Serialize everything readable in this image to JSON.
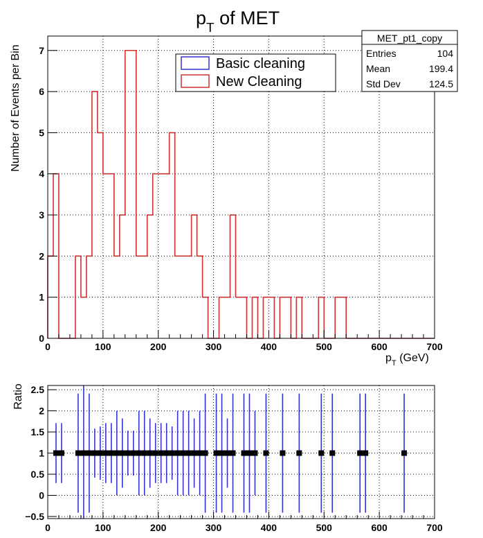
{
  "chart_data": [
    {
      "type": "line",
      "title": "p_T of MET",
      "xlabel": "p_T (GeV)",
      "ylabel": "Number of Events per Bin",
      "xlim": [
        0,
        700
      ],
      "ylim": [
        0,
        7.35
      ],
      "x_ticks": [
        0,
        100,
        200,
        300,
        400,
        500,
        600,
        700
      ],
      "y_ticks": [
        0,
        1,
        2,
        3,
        4,
        5,
        6,
        7
      ],
      "grid": true,
      "legend_position": "top-center",
      "bin_width": 10,
      "series": [
        {
          "name": "Basic cleaning",
          "color": "#3333cc",
          "values": []
        },
        {
          "name": "New Cleaning",
          "color": "#cc3333",
          "values": [
            2,
            4,
            0,
            0,
            0,
            2,
            1,
            2,
            6,
            5,
            4,
            4,
            2,
            3,
            7,
            7,
            2,
            2,
            3,
            4,
            4,
            4,
            5,
            2,
            2,
            2,
            3,
            2,
            1,
            0,
            0,
            1,
            1,
            3,
            1,
            1,
            0,
            1,
            0,
            1,
            1,
            0,
            1,
            1,
            0,
            1,
            0,
            0,
            0,
            1,
            0,
            0,
            1,
            1,
            0,
            0,
            0,
            0,
            0,
            0,
            0,
            0,
            0,
            0,
            0,
            0,
            0,
            0,
            0,
            0
          ]
        }
      ],
      "stats": {
        "name": "MET_pt1_copy",
        "rows": [
          {
            "label": "Entries",
            "value": "104"
          },
          {
            "label": "Mean",
            "value": "199.4"
          },
          {
            "label": "Std Dev",
            "value": "124.5"
          }
        ]
      }
    },
    {
      "type": "scatter",
      "title": "",
      "xlabel": "",
      "ylabel": "Ratio",
      "xlim": [
        0,
        700
      ],
      "ylim": [
        -0.55,
        2.6
      ],
      "x_ticks": [
        0,
        100,
        200,
        300,
        400,
        500,
        600,
        700
      ],
      "y_ticks": [
        -0.5,
        0,
        0.5,
        1,
        1.5,
        2,
        2.5
      ],
      "y_tick_labels": [
        "−0.5",
        "0",
        "0.5",
        "1",
        "1.5",
        "2",
        "2.5"
      ],
      "grid": true,
      "marker_color": "#000000",
      "error_color": "#3333cc",
      "points": [
        {
          "x": 15,
          "y": 1,
          "err": 0.71
        },
        {
          "x": 25,
          "y": 1,
          "err": 0.71
        },
        {
          "x": 55,
          "y": 1,
          "err": 1.41
        },
        {
          "x": 65,
          "y": 1,
          "err": 2
        },
        {
          "x": 75,
          "y": 1,
          "err": 1.41
        },
        {
          "x": 85,
          "y": 1,
          "err": 0.58
        },
        {
          "x": 95,
          "y": 1,
          "err": 0.63
        },
        {
          "x": 105,
          "y": 1,
          "err": 0.71
        },
        {
          "x": 115,
          "y": 1,
          "err": 0.71
        },
        {
          "x": 125,
          "y": 1,
          "err": 1
        },
        {
          "x": 135,
          "y": 1,
          "err": 0.82
        },
        {
          "x": 145,
          "y": 1,
          "err": 0.53
        },
        {
          "x": 155,
          "y": 1,
          "err": 0.53
        },
        {
          "x": 165,
          "y": 1,
          "err": 1
        },
        {
          "x": 175,
          "y": 1,
          "err": 1
        },
        {
          "x": 185,
          "y": 1,
          "err": 0.82
        },
        {
          "x": 195,
          "y": 1,
          "err": 0.71
        },
        {
          "x": 205,
          "y": 1,
          "err": 0.71
        },
        {
          "x": 215,
          "y": 1,
          "err": 0.71
        },
        {
          "x": 225,
          "y": 1,
          "err": 0.63
        },
        {
          "x": 235,
          "y": 1,
          "err": 1
        },
        {
          "x": 245,
          "y": 1,
          "err": 1
        },
        {
          "x": 255,
          "y": 1,
          "err": 1
        },
        {
          "x": 265,
          "y": 1,
          "err": 0.82
        },
        {
          "x": 275,
          "y": 1,
          "err": 1
        },
        {
          "x": 285,
          "y": 1,
          "err": 1.41
        },
        {
          "x": 305,
          "y": 1,
          "err": 1.41
        },
        {
          "x": 315,
          "y": 1,
          "err": 1.41
        },
        {
          "x": 325,
          "y": 1,
          "err": 0.82
        },
        {
          "x": 335,
          "y": 1,
          "err": 1.41
        },
        {
          "x": 355,
          "y": 1,
          "err": 1.41
        },
        {
          "x": 365,
          "y": 1,
          "err": 1.41
        },
        {
          "x": 375,
          "y": 1,
          "err": 1
        },
        {
          "x": 395,
          "y": 1,
          "err": 1.41
        },
        {
          "x": 425,
          "y": 1,
          "err": 1.41
        },
        {
          "x": 455,
          "y": 1,
          "err": 1.41
        },
        {
          "x": 495,
          "y": 1,
          "err": 1.41
        },
        {
          "x": 515,
          "y": 1,
          "err": 1.41
        },
        {
          "x": 565,
          "y": 1,
          "err": 1.41
        },
        {
          "x": 575,
          "y": 1,
          "err": 1.41
        },
        {
          "x": 645,
          "y": 1,
          "err": 1.41
        }
      ]
    }
  ]
}
